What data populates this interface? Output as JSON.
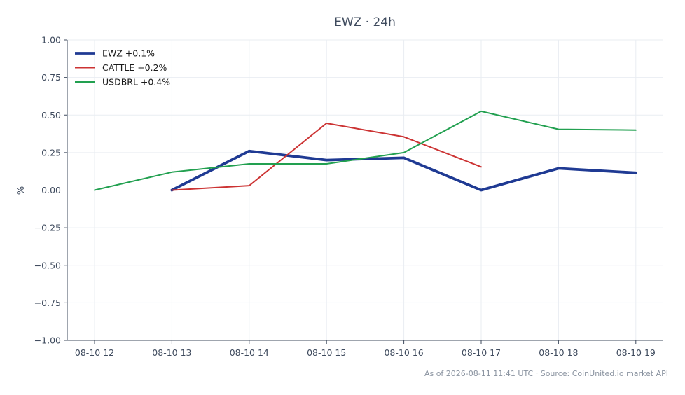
{
  "chart_data": {
    "type": "line",
    "title": "EWZ · 24h",
    "xlabel": "",
    "ylabel": "%",
    "ylim": [
      -1.0,
      1.0
    ],
    "yticks": [
      -1.0,
      -0.75,
      -0.5,
      -0.25,
      0.0,
      0.25,
      0.5,
      0.75,
      1.0
    ],
    "ytick_labels": [
      "−1.00",
      "−0.75",
      "−0.50",
      "−0.25",
      "0.00",
      "0.25",
      "0.50",
      "0.75",
      "1.00"
    ],
    "categories": [
      "08-10 12",
      "08-10 13",
      "08-10 14",
      "08-10 15",
      "08-10 16",
      "08-10 17",
      "08-10 18",
      "08-10 19"
    ],
    "grid": true,
    "legend_position": "top-left",
    "reference_line": 0.0,
    "series": [
      {
        "name": "EWZ +0.1%",
        "color": "#1f3a93",
        "values": [
          null,
          0.0,
          0.26,
          0.2,
          0.215,
          0.0,
          0.145,
          0.115
        ]
      },
      {
        "name": "CATTLE +0.2%",
        "color": "#cc3333",
        "values": [
          null,
          0.0,
          0.03,
          0.445,
          0.355,
          0.155,
          null,
          null
        ]
      },
      {
        "name": "USDBRL +0.4%",
        "color": "#22a050",
        "values": [
          0.0,
          0.12,
          0.175,
          0.175,
          0.25,
          0.525,
          0.405,
          0.4
        ]
      }
    ],
    "footer": "As of 2026-08-11 11:41 UTC · Source: CoinUnited.io market API"
  }
}
